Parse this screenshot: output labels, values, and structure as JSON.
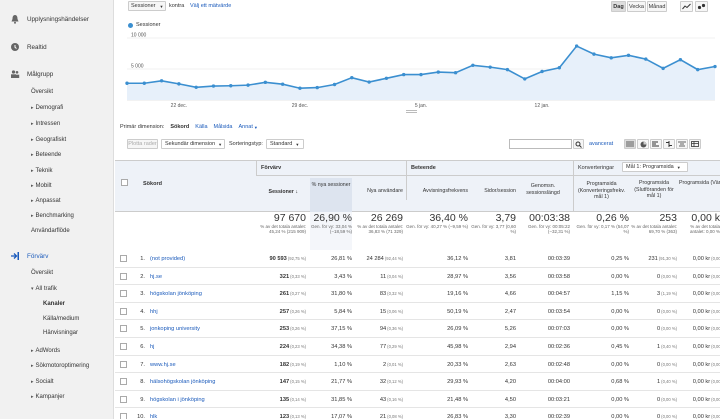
{
  "sidebar": {
    "top_item": "Upplysningshändelser",
    "realtid": "Realtid",
    "malgrupp": "Målgrupp",
    "malgrupp_items": [
      "Översikt",
      "Demografi",
      "Intressen",
      "Geografiskt",
      "Beteende",
      "Teknik",
      "Mobilt",
      "Anpassat",
      "Benchmarking",
      "Användarflöde"
    ],
    "forvarv": "Förvärv",
    "forvarv_items": [
      "Översikt",
      "All trafik",
      "Kanaler",
      "Källa/medium",
      "Hänvisningar",
      "AdWords",
      "Sökmotoroptimering",
      "Socialt",
      "Kampanjer"
    ]
  },
  "toolbar": {
    "metric_select": "Sessioner",
    "kontra": "kontra",
    "choose_metric": "Välj ett mätvärde",
    "day": "Dag",
    "week": "Vecka",
    "month": "Månad",
    "legend": "Sessioner"
  },
  "chart_data": {
    "type": "line",
    "series": [
      {
        "name": "Sessioner",
        "values": [
          2700,
          2700,
          3100,
          2600,
          2050,
          2250,
          2300,
          2400,
          2850,
          2550,
          1900,
          2000,
          2500,
          3600,
          2900,
          3500,
          4100,
          4100,
          4500,
          4400,
          5600,
          5300,
          4900,
          3400,
          4600,
          5200,
          8700,
          7400,
          6800,
          7200,
          6600,
          5100,
          6500,
          4900,
          5400
        ]
      }
    ],
    "ylim": [
      0,
      10000
    ],
    "y_ticks": [
      "10 000",
      "5 000"
    ],
    "x_labels": [
      "22 dec.",
      "29 dec.",
      "5 jan.",
      "12 jan."
    ]
  },
  "dimensions": {
    "label": "Primär dimension:",
    "items": [
      "Sökord",
      "Källa",
      "Målsida",
      "Annat"
    ],
    "plot_rows": "Plotta rader",
    "secondary": "Sekundär dimension",
    "sort_label": "Sorteringstyp:",
    "sort_value": "Standard",
    "advanced": "avancerat",
    "conversions": "Konverteringar",
    "goal_select": "Mål 1: Programsida"
  },
  "groups": {
    "forvarv": "Förvärv",
    "beteende": "Beteende",
    "konv": "Konverteringar",
    "goal": "Mål 1: Programsida"
  },
  "columns": {
    "sokord": "Sökord",
    "sessioner": "Sessioner",
    "nya_pct": "% nya sessioner",
    "nya_anv": "Nya användare",
    "avvisn": "Avvisningsfrekvens",
    "sidor": "Sidor/session",
    "genomsn": "Genomsn. sessionslängd",
    "konv": "Programsida (Konverteringsfrekv. mål 1)",
    "slutf": "Programsida (Slutföranden för mål 1)",
    "varde": "Programsida (Värde för mål 1)"
  },
  "totals": {
    "sessioner": {
      "value": "97 670",
      "sub": "% av det totala antalet: 45,24 % (215 909)"
    },
    "nya_pct": {
      "value": "26,90 %",
      "sub": "Gen. för vy: 33,04 % (−18,59 %)"
    },
    "nya_anv": {
      "value": "26 269",
      "sub": "% av det totala antalet: 36,83 % (71 329)"
    },
    "avvisn": {
      "value": "36,40 %",
      "sub": "Gen. för vy: 40,27 % (−9,59 %)"
    },
    "sidor": {
      "value": "3,79",
      "sub": "Gen. för vy: 3,77 (0,60 %)"
    },
    "genomsn": {
      "value": "00:03:38",
      "sub": "Gen. för vy: 00:05:22 (−32,31 %)"
    },
    "konv": {
      "value": "0,26 %",
      "sub": "Gen. för vy: 0,17 % (54,07 %)"
    },
    "slutf": {
      "value": "253",
      "sub": "% av det totala antalet: 69,70 % (363)"
    },
    "varde": {
      "value": "0,00 k",
      "sub": "% av det totala antalet: 0,00 %"
    }
  },
  "rows": [
    {
      "n": "1.",
      "kw": "(not provided)",
      "s": "90 593",
      "sp": "(92,75 %)",
      "np": "26,81 %",
      "na": "24 284",
      "nap": "(92,44 %)",
      "av": "36,12 %",
      "sid": "3,81",
      "gl": "00:03:39",
      "kf": "0,25 %",
      "sl": "231",
      "slp": "(91,30 %)",
      "v": "0,00 kr",
      "vp": "(0,00 %)"
    },
    {
      "n": "2.",
      "kw": "hj.se",
      "s": "321",
      "sp": "(0,33 %)",
      "np": "3,43 %",
      "na": "11",
      "nap": "(0,04 %)",
      "av": "28,97 %",
      "sid": "3,56",
      "gl": "00:03:58",
      "kf": "0,00 %",
      "sl": "0",
      "slp": "(0,00 %)",
      "v": "0,00 kr",
      "vp": "(0,00 %)"
    },
    {
      "n": "3.",
      "kw": "högskolan jönköping",
      "s": "261",
      "sp": "(0,27 %)",
      "np": "31,80 %",
      "na": "83",
      "nap": "(0,32 %)",
      "av": "19,16 %",
      "sid": "4,66",
      "gl": "00:04:57",
      "kf": "1,15 %",
      "sl": "3",
      "slp": "(1,19 %)",
      "v": "0,00 kr",
      "vp": "(0,00 %)"
    },
    {
      "n": "4.",
      "kw": "hhj",
      "s": "257",
      "sp": "(0,26 %)",
      "np": "5,84 %",
      "na": "15",
      "nap": "(0,06 %)",
      "av": "50,19 %",
      "sid": "2,47",
      "gl": "00:03:54",
      "kf": "0,00 %",
      "sl": "0",
      "slp": "(0,00 %)",
      "v": "0,00 kr",
      "vp": "(0,00 %)"
    },
    {
      "n": "5.",
      "kw": "jonkoping university",
      "s": "253",
      "sp": "(0,26 %)",
      "np": "37,15 %",
      "na": "94",
      "nap": "(0,36 %)",
      "av": "26,09 %",
      "sid": "5,26",
      "gl": "00:07:03",
      "kf": "0,00 %",
      "sl": "0",
      "slp": "(0,00 %)",
      "v": "0,00 kr",
      "vp": "(0,00 %)"
    },
    {
      "n": "6.",
      "kw": "hj",
      "s": "224",
      "sp": "(0,23 %)",
      "np": "34,38 %",
      "na": "77",
      "nap": "(0,29 %)",
      "av": "45,98 %",
      "sid": "2,94",
      "gl": "00:02:36",
      "kf": "0,45 %",
      "sl": "1",
      "slp": "(0,40 %)",
      "v": "0,00 kr",
      "vp": "(0,00 %)"
    },
    {
      "n": "7.",
      "kw": "www.hj.se",
      "s": "182",
      "sp": "(0,19 %)",
      "np": "1,10 %",
      "na": "2",
      "nap": "(0,01 %)",
      "av": "20,33 %",
      "sid": "2,63",
      "gl": "00:02:48",
      "kf": "0,00 %",
      "sl": "0",
      "slp": "(0,00 %)",
      "v": "0,00 kr",
      "vp": "(0,00 %)"
    },
    {
      "n": "8.",
      "kw": "hälsohögskolan jönköping",
      "s": "147",
      "sp": "(0,15 %)",
      "np": "21,77 %",
      "na": "32",
      "nap": "(0,12 %)",
      "av": "29,93 %",
      "sid": "4,20",
      "gl": "00:04:00",
      "kf": "0,68 %",
      "sl": "1",
      "slp": "(0,40 %)",
      "v": "0,00 kr",
      "vp": "(0,00 %)"
    },
    {
      "n": "9.",
      "kw": "högskolan i jönköping",
      "s": "135",
      "sp": "(0,14 %)",
      "np": "31,85 %",
      "na": "43",
      "nap": "(0,16 %)",
      "av": "21,48 %",
      "sid": "4,50",
      "gl": "00:03:21",
      "kf": "0,00 %",
      "sl": "0",
      "slp": "(0,00 %)",
      "v": "0,00 kr",
      "vp": "(0,00 %)"
    },
    {
      "n": "10.",
      "kw": "hlk",
      "s": "123",
      "sp": "(0,13 %)",
      "np": "17,07 %",
      "na": "21",
      "nap": "(0,08 %)",
      "av": "26,83 %",
      "sid": "3,30",
      "gl": "00:02:39",
      "kf": "0,00 %",
      "sl": "0",
      "slp": "(0,00 %)",
      "v": "0,00 kr",
      "vp": "(0,00 %)"
    }
  ]
}
